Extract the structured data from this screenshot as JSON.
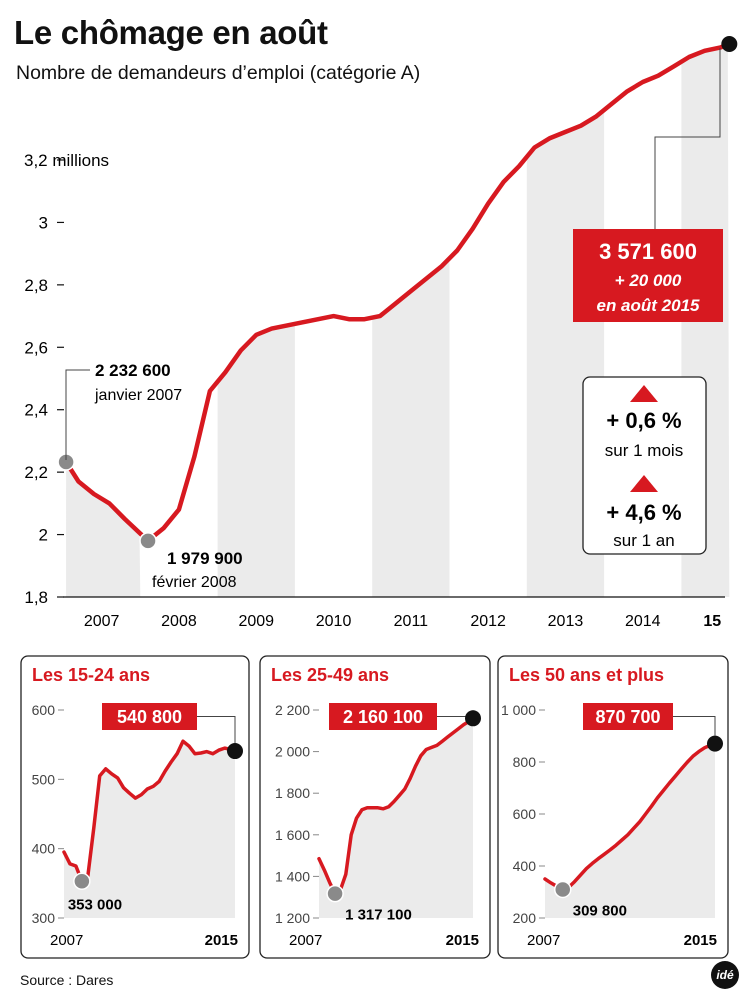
{
  "header": {
    "title": "Le chômage en août",
    "subtitle": "Nombre de demandeurs d’emploi (catégorie A)"
  },
  "colors": {
    "accent": "#d71920",
    "band": "#ebebeb",
    "marker_grey": "#8a8a8a",
    "text": "#111111"
  },
  "main_chart": {
    "y_tick_labels": [
      "3,2 millions",
      "3",
      "2,8",
      "2,6",
      "2,4",
      "2,2",
      "2",
      "1,8"
    ],
    "x_tick_labels": [
      "2007",
      "2008",
      "2009",
      "2010",
      "2011",
      "2012",
      "2013",
      "2014",
      "15"
    ],
    "start_callout": {
      "value": "2 232 600",
      "date": "janvier 2007"
    },
    "min_callout": {
      "value": "1 979 900",
      "date": "février 2008"
    },
    "end_callout": {
      "value": "3 571 600",
      "change": "+ 20 000",
      "date": "en août 2015"
    },
    "variations": [
      {
        "value": "+ 0,6 %",
        "period": "sur 1 mois",
        "icon": "triangle-up-icon"
      },
      {
        "value": "+ 4,6 %",
        "period": "sur 1 an",
        "icon": "triangle-up-icon"
      }
    ]
  },
  "panels": [
    {
      "title": "Les 15-24 ans",
      "y_tick_labels": [
        "600",
        "500",
        "400",
        "300"
      ],
      "min_label": "353 000",
      "end_label": "540 800",
      "x_start": "2007",
      "x_end": "2015"
    },
    {
      "title": "Les 25-49 ans",
      "y_tick_labels": [
        "2 200",
        "2 000",
        "1 800",
        "1 600",
        "1 400",
        "1 200"
      ],
      "min_label": "1 317 100",
      "end_label": "2 160 100",
      "x_start": "2007",
      "x_end": "2015"
    },
    {
      "title": "Les 50 ans et plus",
      "y_tick_labels": [
        "1 000",
        "800",
        "600",
        "400",
        "200"
      ],
      "min_label": "309 800",
      "end_label": "870 700",
      "x_start": "2007",
      "x_end": "2015"
    }
  ],
  "footer": {
    "source": "Source : Dares",
    "logo_text": "idé"
  },
  "chart_data": [
    {
      "type": "line",
      "title": "Le chômage en août",
      "subtitle": "Nombre de demandeurs d’emploi (catégorie A)",
      "ylabel": "",
      "ylim": [
        1.8,
        3.6
      ],
      "yticks": [
        1.8,
        2.0,
        2.2,
        2.4,
        2.6,
        2.8,
        3.0,
        3.2
      ],
      "grid": false,
      "series": [
        {
          "x": [
            2007.04,
            2007.2,
            2007.4,
            2007.6,
            2007.8,
            2008.1,
            2008.3,
            2008.5,
            2008.7,
            2008.9,
            2009.1,
            2009.3,
            2009.5,
            2009.7,
            2009.9,
            2010.1,
            2010.3,
            2010.5,
            2010.7,
            2010.9,
            2011.1,
            2011.3,
            2011.5,
            2011.7,
            2011.9,
            2012.1,
            2012.3,
            2012.5,
            2012.7,
            2012.9,
            2013.1,
            2013.3,
            2013.5,
            2013.7,
            2013.9,
            2014.1,
            2014.3,
            2014.5,
            2014.7,
            2014.9,
            2015.1,
            2015.3,
            2015.5,
            2015.62
          ],
          "y": [
            2.2326,
            2.17,
            2.13,
            2.1,
            2.05,
            1.9799,
            2.02,
            2.08,
            2.25,
            2.46,
            2.52,
            2.59,
            2.64,
            2.66,
            2.67,
            2.68,
            2.69,
            2.7,
            2.69,
            2.69,
            2.7,
            2.74,
            2.78,
            2.82,
            2.86,
            2.91,
            2.98,
            3.06,
            3.13,
            3.18,
            3.24,
            3.27,
            3.29,
            3.31,
            3.34,
            3.38,
            3.42,
            3.45,
            3.47,
            3.5,
            3.53,
            3.55,
            3.56,
            3.5716
          ]
        }
      ],
      "annotations": [
        {
          "x": 2007.04,
          "y": 2.2326,
          "text": "2 232 600 janvier 2007"
        },
        {
          "x": 2008.1,
          "y": 1.9799,
          "text": "1 979 900 février 2008"
        },
        {
          "x": 2015.62,
          "y": 3.5716,
          "text": "3 571 600 + 20 000 en août 2015"
        }
      ]
    },
    {
      "type": "line",
      "title": "Les 15-24 ans",
      "ylim": [
        300,
        600
      ],
      "yticks": [
        300,
        400,
        500,
        600
      ],
      "series": [
        {
          "x": [
            2007.0,
            2007.3,
            2007.6,
            2007.9,
            2008.2,
            2008.5,
            2008.8,
            2009.1,
            2009.4,
            2009.7,
            2010.0,
            2010.3,
            2010.6,
            2010.9,
            2011.2,
            2011.5,
            2011.8,
            2012.1,
            2012.4,
            2012.7,
            2013.0,
            2013.3,
            2013.6,
            2013.9,
            2014.2,
            2014.5,
            2014.8,
            2015.1,
            2015.4,
            2015.62
          ],
          "y": [
            395,
            378,
            375,
            353,
            360,
            430,
            505,
            515,
            508,
            502,
            488,
            480,
            473,
            478,
            486,
            490,
            497,
            512,
            525,
            537,
            555,
            548,
            537,
            538,
            540,
            537,
            542,
            545,
            543,
            540.8
          ]
        }
      ]
    },
    {
      "type": "line",
      "title": "Les 25-49 ans",
      "ylim": [
        1200,
        2200
      ],
      "yticks": [
        1200,
        1400,
        1600,
        1800,
        2000,
        2200
      ],
      "series": [
        {
          "x": [
            2007.0,
            2007.3,
            2007.6,
            2007.9,
            2008.2,
            2008.5,
            2008.8,
            2009.1,
            2009.4,
            2009.7,
            2010.0,
            2010.3,
            2010.6,
            2010.9,
            2011.2,
            2011.5,
            2011.8,
            2012.1,
            2012.4,
            2012.7,
            2013.0,
            2013.3,
            2013.6,
            2013.9,
            2014.2,
            2014.5,
            2014.8,
            2015.1,
            2015.4,
            2015.62
          ],
          "y": [
            1485,
            1430,
            1370,
            1317.1,
            1335,
            1410,
            1600,
            1680,
            1720,
            1730,
            1730,
            1730,
            1725,
            1735,
            1760,
            1790,
            1820,
            1870,
            1930,
            1980,
            2010,
            2020,
            2030,
            2050,
            2070,
            2090,
            2110,
            2130,
            2145,
            2160.1
          ]
        }
      ]
    },
    {
      "type": "line",
      "title": "Les 50 ans et plus",
      "ylim": [
        200,
        1000
      ],
      "yticks": [
        200,
        400,
        600,
        800,
        1000
      ],
      "series": [
        {
          "x": [
            2007.0,
            2007.3,
            2007.6,
            2007.9,
            2008.2,
            2008.5,
            2008.8,
            2009.1,
            2009.4,
            2009.7,
            2010.0,
            2010.3,
            2010.6,
            2010.9,
            2011.2,
            2011.5,
            2011.8,
            2012.1,
            2012.4,
            2012.7,
            2013.0,
            2013.3,
            2013.6,
            2013.9,
            2014.2,
            2014.5,
            2014.8,
            2015.1,
            2015.4,
            2015.62
          ],
          "y": [
            350,
            335,
            322,
            309.8,
            318,
            340,
            365,
            390,
            410,
            428,
            445,
            462,
            480,
            500,
            520,
            545,
            570,
            600,
            630,
            662,
            690,
            718,
            745,
            772,
            798,
            822,
            840,
            855,
            865,
            870.7
          ]
        }
      ]
    }
  ]
}
